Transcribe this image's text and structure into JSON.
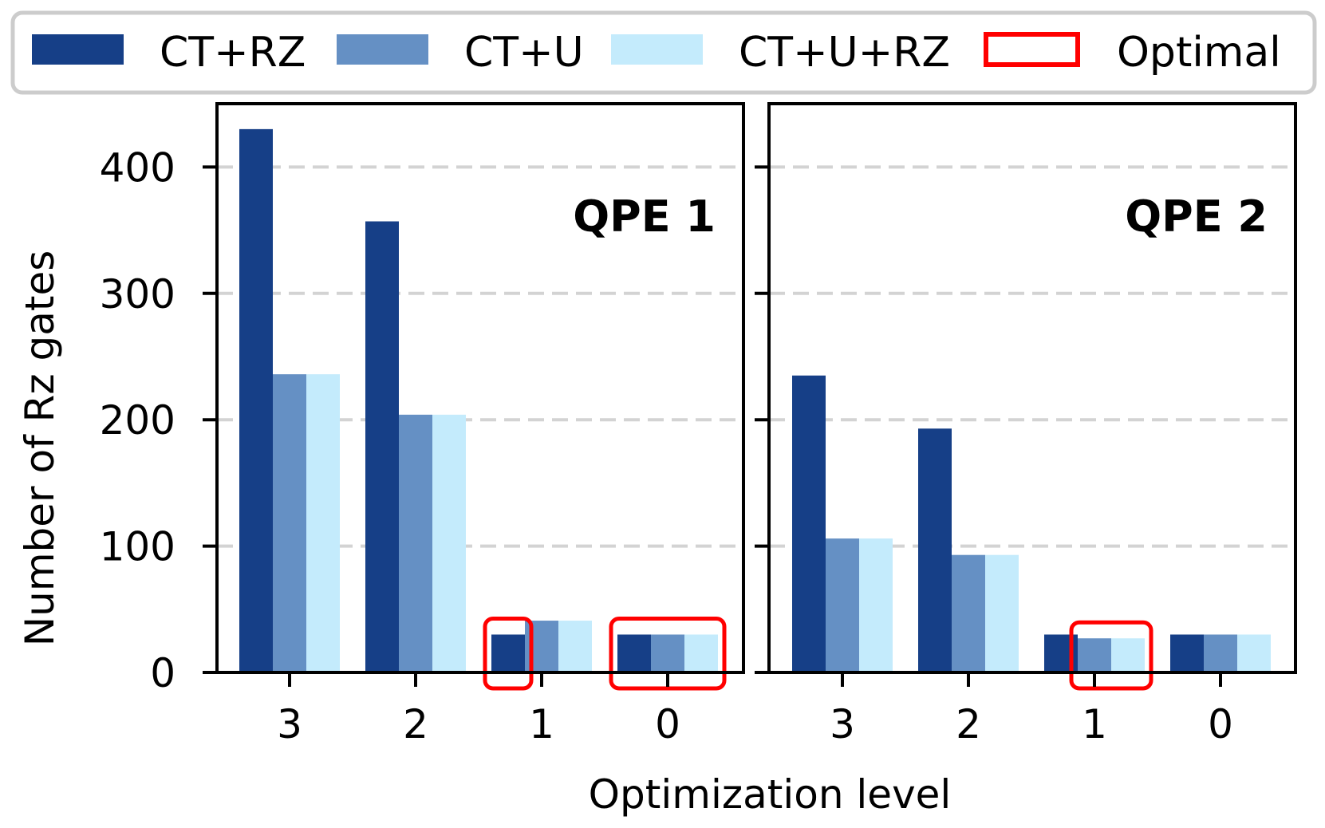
{
  "chart_data": {
    "type": "bar",
    "xlabel": "Optimization level",
    "ylabel": "Number of Rz gates",
    "ylim": [
      0,
      450
    ],
    "yticks": [
      0,
      100,
      200,
      300,
      400
    ],
    "grid": "horizontal dashed",
    "legend_position": "top",
    "categories": [
      "3",
      "2",
      "1",
      "0"
    ],
    "legend": [
      {
        "label": "CT+RZ",
        "color": "#163f87",
        "kind": "fill"
      },
      {
        "label": "CT+U",
        "color": "#6590c4",
        "kind": "fill"
      },
      {
        "label": "CT+U+RZ",
        "color": "#c4ebfc",
        "kind": "fill"
      },
      {
        "label": "Optimal",
        "color": "#ff0000",
        "kind": "outline"
      }
    ],
    "panels": [
      {
        "title": "QPE 1",
        "series": [
          {
            "name": "CT+RZ",
            "values": [
              430,
              357,
              30,
              30
            ]
          },
          {
            "name": "CT+U",
            "values": [
              236,
              204,
              41,
              30
            ]
          },
          {
            "name": "CT+U+RZ",
            "values": [
              236,
              204,
              41,
              30
            ]
          }
        ],
        "optimal": [
          {
            "category": "1",
            "series": [
              "CT+RZ"
            ]
          },
          {
            "category": "0",
            "series": [
              "CT+RZ",
              "CT+U",
              "CT+U+RZ"
            ]
          }
        ]
      },
      {
        "title": "QPE 2",
        "series": [
          {
            "name": "CT+RZ",
            "values": [
              235,
              193,
              30,
              30
            ]
          },
          {
            "name": "CT+U",
            "values": [
              106,
              93,
              27,
              30
            ]
          },
          {
            "name": "CT+U+RZ",
            "values": [
              106,
              93,
              27,
              30
            ]
          }
        ],
        "optimal": [
          {
            "category": "1",
            "series": [
              "CT+U",
              "CT+U+RZ"
            ]
          }
        ]
      }
    ]
  }
}
